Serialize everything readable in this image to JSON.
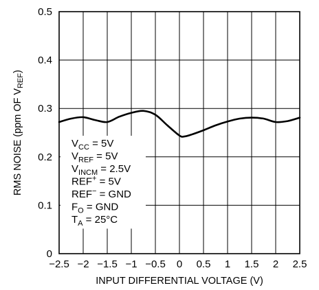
{
  "chart_data": {
    "type": "line",
    "xlabel": "INPUT DIFFERENTIAL VOLTAGE (V)",
    "ylabel": {
      "main": "RMS NOISE (ppm OF V",
      "sub": "REF",
      "close": ")"
    },
    "xlim": [
      -2.5,
      2.5
    ],
    "ylim": [
      0,
      0.5
    ],
    "grid": true,
    "x_ticks": [
      "−2.5",
      "−2",
      "−1.5",
      "−1",
      "−0.5",
      "0",
      "0.5",
      "1",
      "1.5",
      "2",
      "2.5"
    ],
    "y_ticks": [
      "0",
      "0.1",
      "0.2",
      "0.3",
      "0.4",
      "0.5"
    ],
    "series": [
      {
        "x": [
          -2.5,
          -2.25,
          -2.0,
          -1.75,
          -1.5,
          -1.25,
          -1.0,
          -0.75,
          -0.5,
          -0.25,
          0.0,
          0.1,
          0.25,
          0.5,
          0.75,
          1.0,
          1.25,
          1.5,
          1.75,
          2.0,
          2.25,
          2.5
        ],
        "y": [
          0.272,
          0.279,
          0.282,
          0.276,
          0.272,
          0.283,
          0.291,
          0.295,
          0.287,
          0.265,
          0.244,
          0.242,
          0.246,
          0.255,
          0.265,
          0.273,
          0.279,
          0.281,
          0.279,
          0.272,
          0.274,
          0.281
        ]
      }
    ],
    "conditions": [
      {
        "main": "V",
        "sub": "CC",
        "rest": " = 5V"
      },
      {
        "main": "V",
        "sub": "REF",
        "rest": " = 5V"
      },
      {
        "main": "V",
        "sub": "INCM",
        "rest": " = 2.5V"
      },
      {
        "main": "REF",
        "sup": "+",
        "rest": " = 5V"
      },
      {
        "main": "REF",
        "sup": "−",
        "rest": " = GND"
      },
      {
        "main": "F",
        "sub": "O",
        "rest": " = GND"
      },
      {
        "main": "T",
        "sub": "A",
        "rest": " = 25°C"
      }
    ]
  }
}
